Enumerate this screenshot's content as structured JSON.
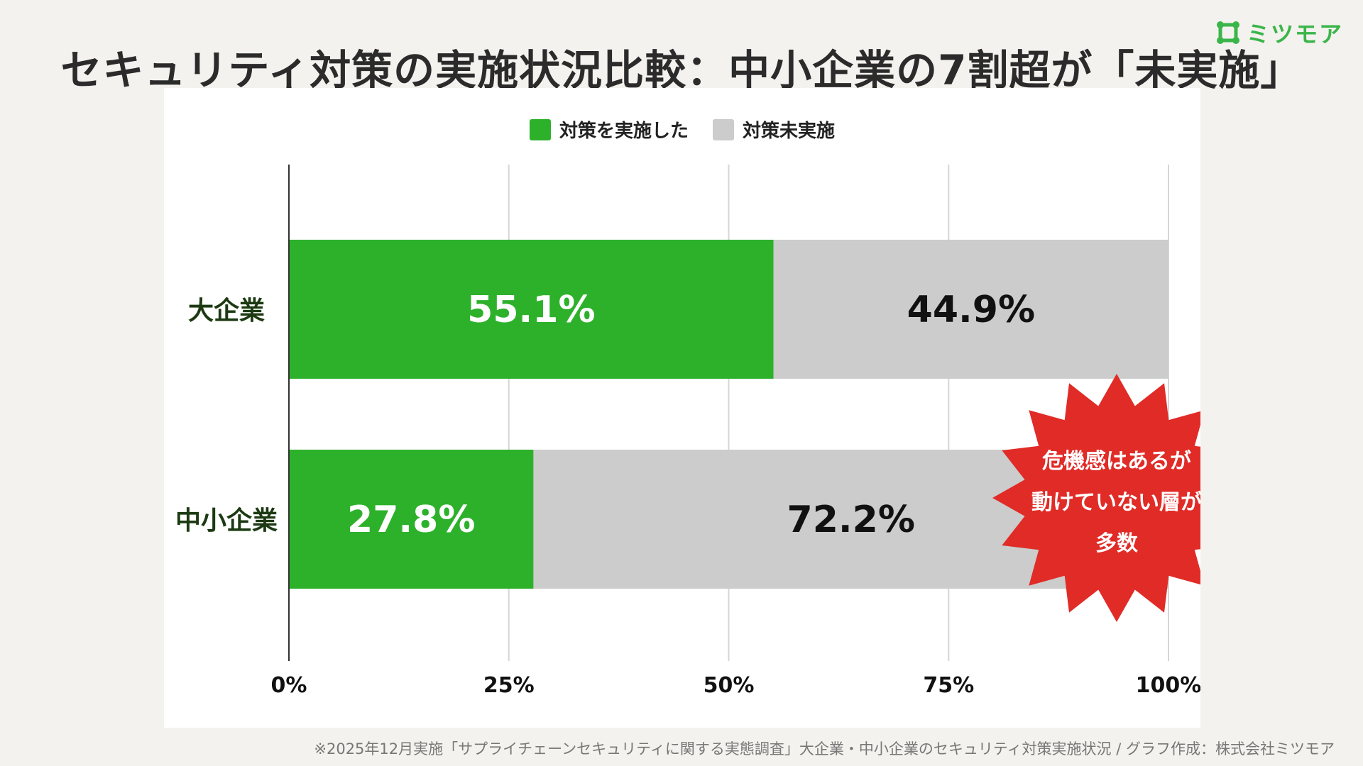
{
  "title": "セキュリティ対策の実施状況比較：中小企業の7割超が「未実施」",
  "logo": {
    "text": "ミツモア",
    "icon": "mitsumore-logo-icon",
    "color": "#3ab54a"
  },
  "footnote": "※2025年12月実施「サプライチェーンセキュリティに関する実態調査」大企業・中小企業のセキュリティ対策実施状況 / グラフ作成：株式会社ミツモア",
  "callout": {
    "lines": [
      "危機感はあるが",
      "動けていない層が",
      "多数"
    ],
    "color": "#e02b27"
  },
  "chart_data": {
    "type": "bar",
    "orientation": "horizontal",
    "stacked": true,
    "categories": [
      "大企業",
      "中小企業"
    ],
    "series": [
      {
        "name": "対策を実施した",
        "values": [
          55.1,
          27.8
        ],
        "labels": [
          "55.1%",
          "27.8%"
        ],
        "color": "#2db12b"
      },
      {
        "name": "対策未実施",
        "values": [
          44.9,
          72.2
        ],
        "labels": [
          "44.9%",
          "72.2%"
        ],
        "color": "#cccccc"
      }
    ],
    "xlim": [
      0,
      100
    ],
    "xticks": [
      0,
      25,
      50,
      75,
      100
    ],
    "xtick_labels": [
      "0%",
      "25%",
      "50%",
      "75%",
      "100%"
    ],
    "grid": true,
    "legend": "top-center"
  }
}
